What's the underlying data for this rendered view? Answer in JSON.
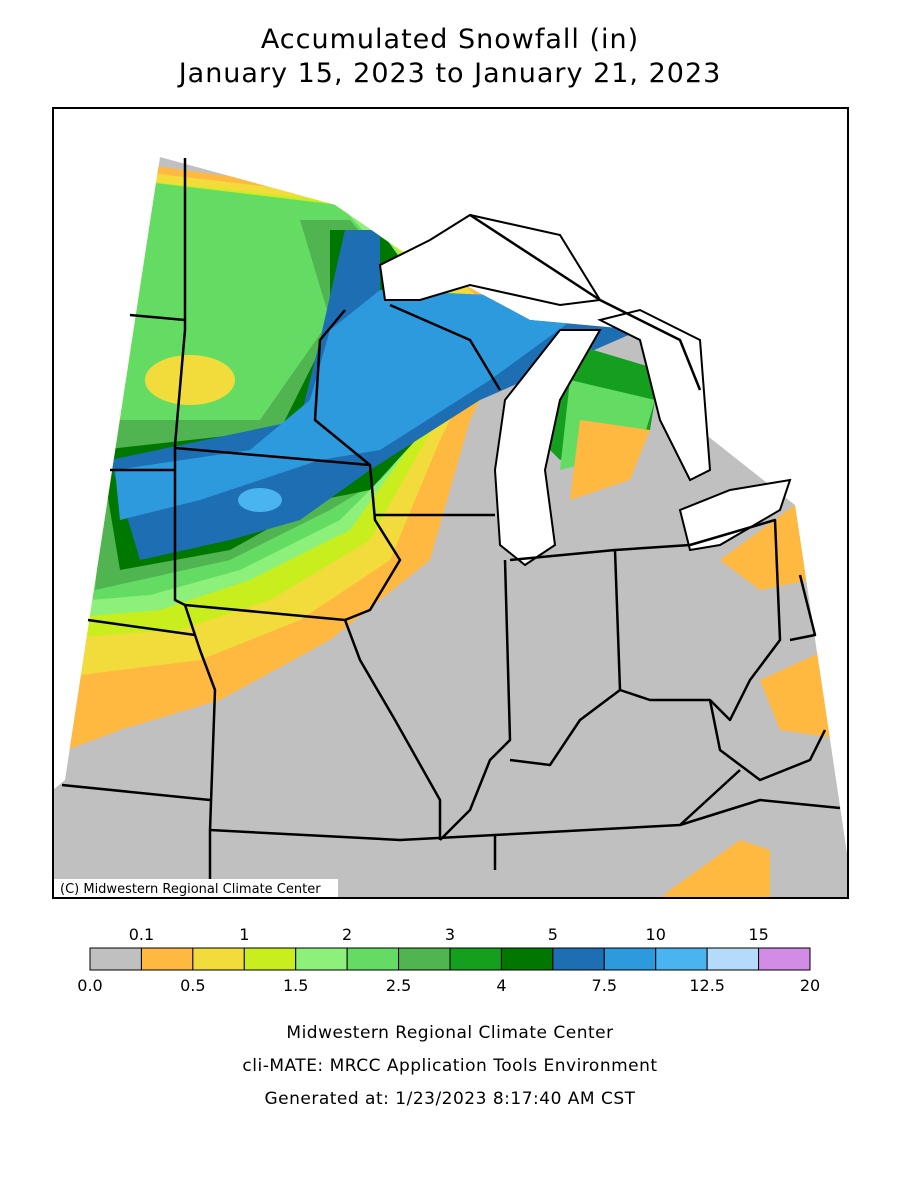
{
  "header": {
    "title": "Accumulated Snowfall (in)",
    "subtitle": "January 15, 2023 to January 21, 2023"
  },
  "map": {
    "credit": "(C) Midwestern Regional Climate Center"
  },
  "legend": {
    "labels": [
      "0.0",
      "0.1",
      "0.5",
      "1",
      "1.5",
      "2",
      "2.5",
      "3",
      "4",
      "5",
      "7.5",
      "10",
      "12.5",
      "15",
      "20"
    ],
    "colors": [
      "#c0c0c0",
      "#ffb940",
      "#f2dc3c",
      "#c8ee1e",
      "#8cf07a",
      "#64dc64",
      "#50b450",
      "#14a01e",
      "#007800",
      "#1e6eb4",
      "#2c9adc",
      "#4ab4f0",
      "#b4dcfa",
      "#d28ce6"
    ]
  },
  "footer": {
    "lines": [
      "Midwestern Regional Climate Center",
      "cli-MATE: MRCC Application Tools Environment",
      "Generated at: 1/23/2023 8:17:40 AM CST"
    ]
  }
}
